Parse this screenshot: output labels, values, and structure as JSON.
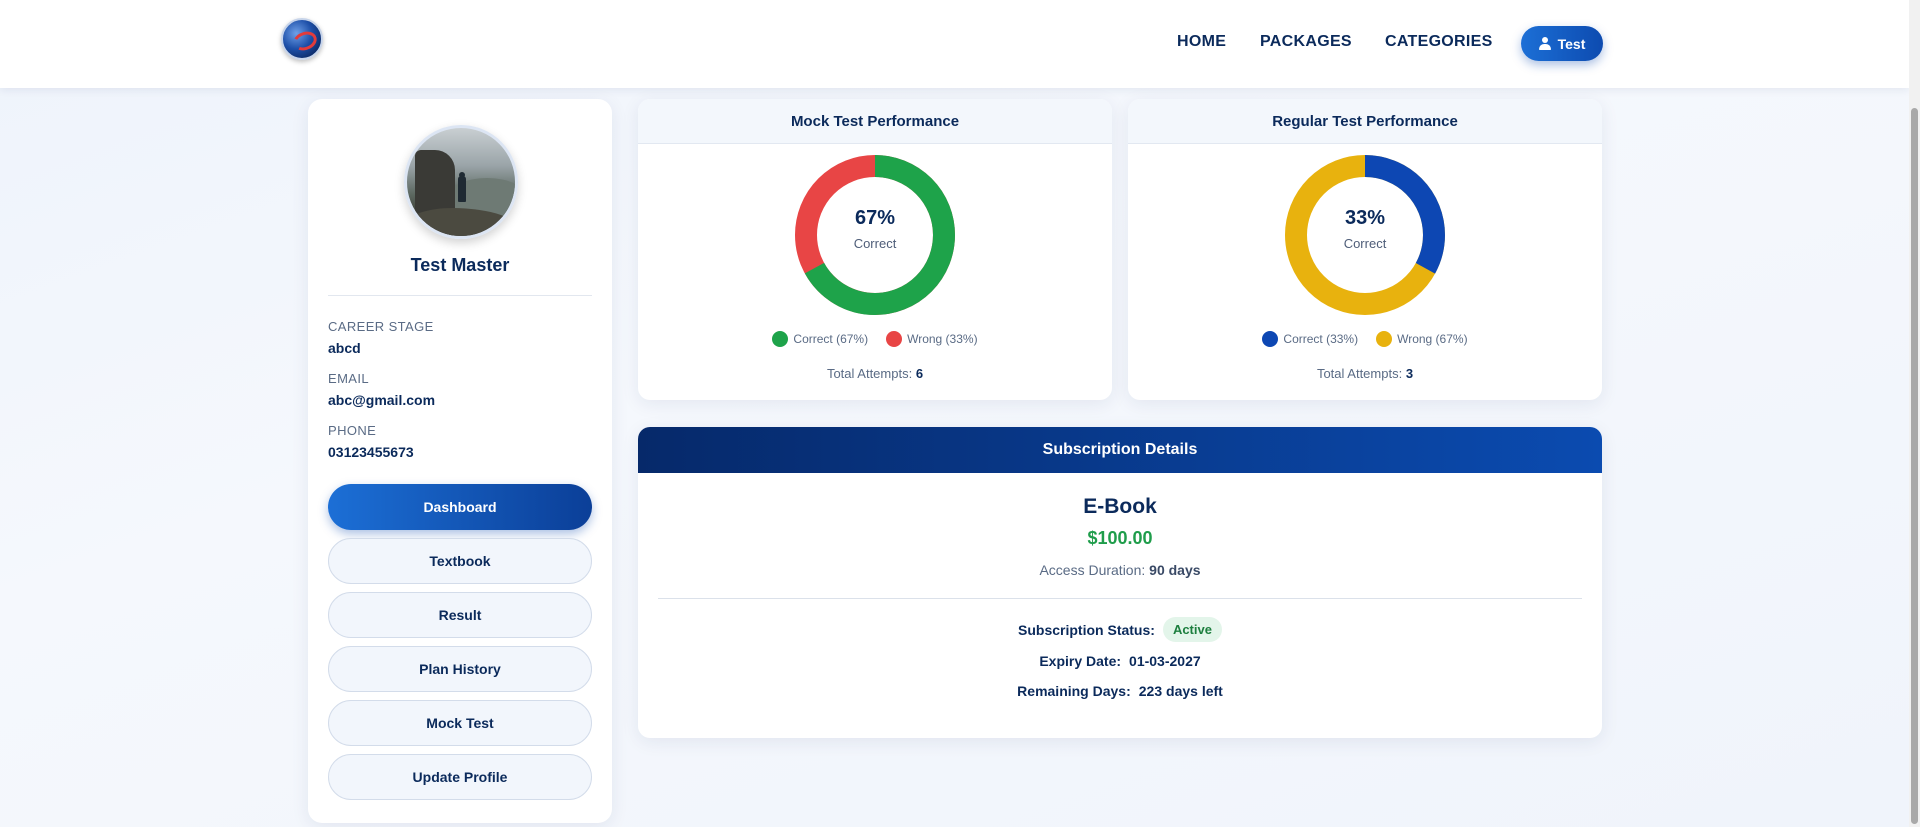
{
  "header": {
    "nav": {
      "home": "HOME",
      "packages": "PACKAGES",
      "categories": "CATEGORIES"
    },
    "user_button": "Test",
    "user_icon": "user-icon",
    "logo_icon": "logo-globe"
  },
  "profile": {
    "name": "Test Master",
    "career_stage_label": "CAREER STAGE",
    "career_stage": "abcd",
    "email_label": "EMAIL",
    "email": "abc@gmail.com",
    "phone_label": "PHONE",
    "phone": "03123455673"
  },
  "sidebar": {
    "buttons": [
      "Dashboard",
      "Textbook",
      "Result",
      "Plan History",
      "Mock Test",
      "Update Profile"
    ],
    "active": "Dashboard"
  },
  "mock": {
    "title": "Mock Test Performance",
    "percent": "67%",
    "center_label": "Correct",
    "legend_correct": "Correct (67%)",
    "legend_wrong": "Wrong (33%)",
    "attempts_label": "Total Attempts:",
    "attempts": "6",
    "correct_fraction": 0.67,
    "color_correct": "#1ea34a",
    "color_wrong": "#e84545"
  },
  "regular": {
    "title": "Regular Test Performance",
    "percent": "33%",
    "center_label": "Correct",
    "legend_correct": "Correct (33%)",
    "legend_wrong": "Wrong (67%)",
    "attempts_label": "Total Attempts:",
    "attempts": "3",
    "correct_fraction": 0.33,
    "color_correct": "#0d47b3",
    "color_wrong": "#e8b20e"
  },
  "subscription": {
    "title": "Subscription Details",
    "plan": "E-Book",
    "price": "$100.00",
    "duration_label": "Access Duration:",
    "duration": "90 days",
    "status_label": "Subscription Status:",
    "status": "Active",
    "expiry_label": "Expiry Date:",
    "expiry": "01-03-2027",
    "remaining_label": "Remaining Days:",
    "remaining": "223 days left"
  }
}
